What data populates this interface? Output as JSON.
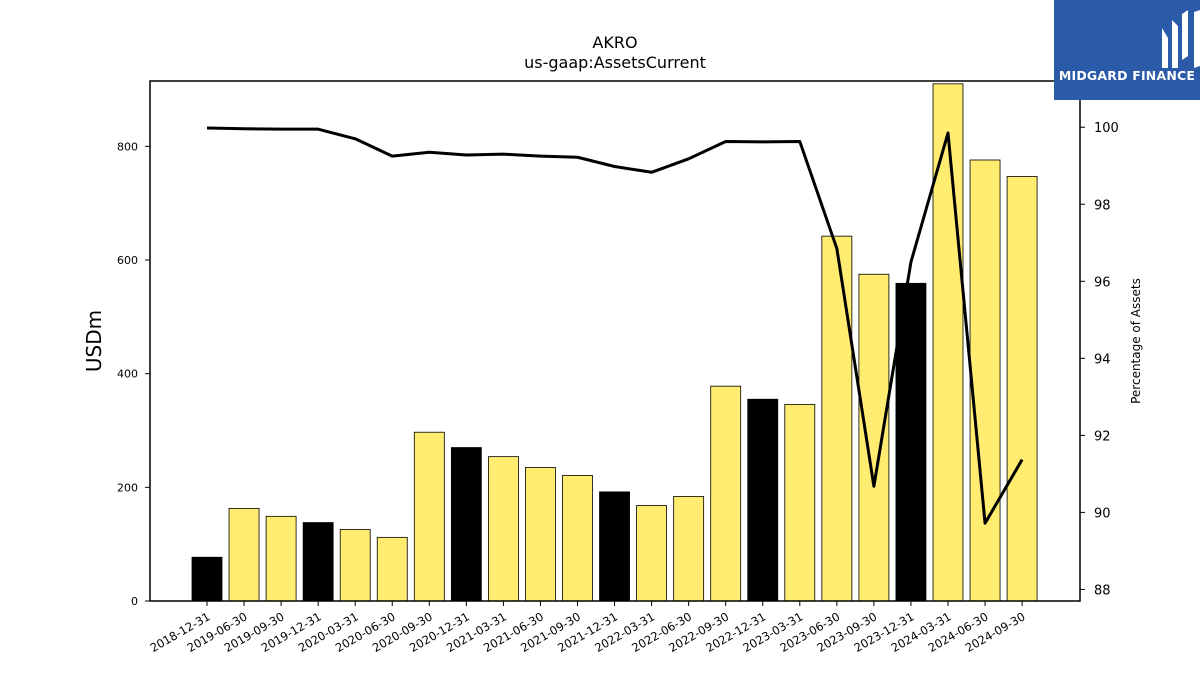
{
  "chart_data": {
    "type": "bar",
    "title": "AKRO",
    "subtitle": "us-gaap:AssetsCurrent",
    "ylabel": "USDm",
    "y2label": "Percentage of Assets",
    "ylim": [
      0,
      915
    ],
    "y2lim": [
      87.7,
      101.2
    ],
    "yticks": [
      0,
      200,
      400,
      600,
      800
    ],
    "y2ticks": [
      88,
      90,
      92,
      94,
      96,
      98,
      100
    ],
    "grid": false,
    "categories": [
      "2018-12-31",
      "2019-06-30",
      "2019-09-30",
      "2019-12-31",
      "2020-03-31",
      "2020-06-30",
      "2020-09-30",
      "2020-12-31",
      "2021-03-31",
      "2021-06-30",
      "2021-09-30",
      "2021-12-31",
      "2022-03-31",
      "2022-06-30",
      "2022-09-30",
      "2022-12-31",
      "2023-03-31",
      "2023-06-30",
      "2023-09-30",
      "2023-12-31",
      "2024-03-31",
      "2024-06-30",
      "2024-09-30"
    ],
    "values": [
      77,
      163,
      149,
      138,
      126,
      112,
      297,
      270,
      254,
      235,
      221,
      192,
      168,
      184,
      378,
      355,
      346,
      642,
      575,
      559,
      910,
      776,
      747
    ],
    "bar_colors": [
      "#000000",
      "#ffec70",
      "#ffec70",
      "#000000",
      "#ffec70",
      "#ffec70",
      "#ffec70",
      "#000000",
      "#ffec70",
      "#ffec70",
      "#ffec70",
      "#000000",
      "#ffec70",
      "#ffec70",
      "#ffec70",
      "#000000",
      "#ffec70",
      "#ffec70",
      "#ffec70",
      "#000000",
      "#ffec70",
      "#ffec70",
      "#ffec70"
    ],
    "line_values": [
      99.98,
      99.96,
      99.95,
      99.95,
      99.7,
      99.25,
      99.35,
      99.28,
      99.3,
      99.25,
      99.22,
      98.98,
      98.83,
      99.18,
      99.63,
      99.62,
      99.63,
      96.85,
      90.68,
      96.5,
      99.85,
      89.72,
      91.37
    ],
    "line_color": "#000000"
  },
  "logo": {
    "text": "MIDGARD FINANCE",
    "background": "#2a5aa8"
  }
}
